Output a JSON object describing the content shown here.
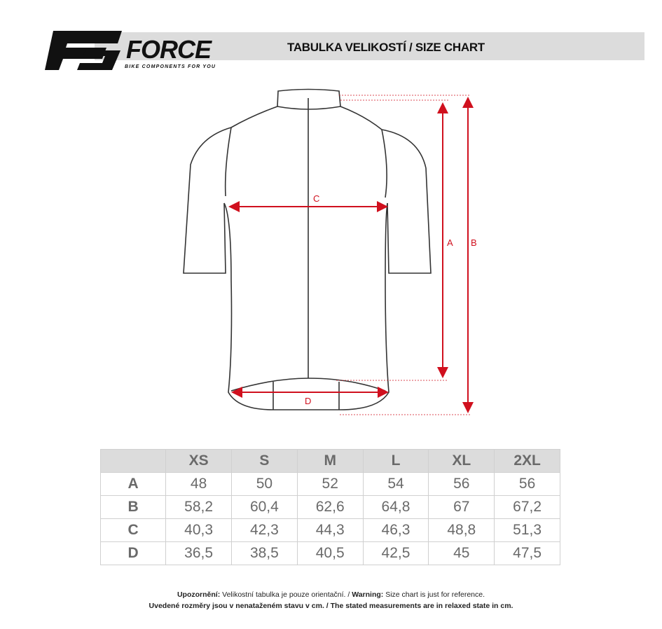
{
  "brand": {
    "name": "FORCE",
    "tagline": "BIKE COMPONENTS FOR YOU"
  },
  "header": {
    "title": "TABULKA VELIKOSTÍ / SIZE CHART"
  },
  "diagram": {
    "labels": {
      "a": "A",
      "b": "B",
      "c": "C",
      "d": "D"
    },
    "accent": "#d0101e"
  },
  "table": {
    "columns": [
      "XS",
      "S",
      "M",
      "L",
      "XL",
      "2XL"
    ],
    "rows": [
      {
        "label": "A",
        "values": [
          "48",
          "50",
          "52",
          "54",
          "56",
          "56"
        ]
      },
      {
        "label": "B",
        "values": [
          "58,2",
          "60,4",
          "62,6",
          "64,8",
          "67",
          "67,2"
        ]
      },
      {
        "label": "C",
        "values": [
          "40,3",
          "42,3",
          "44,3",
          "46,3",
          "48,8",
          "51,3"
        ]
      },
      {
        "label": "D",
        "values": [
          "36,5",
          "38,5",
          "40,5",
          "42,5",
          "45",
          "47,5"
        ]
      }
    ]
  },
  "footer": {
    "warn_cz_label": "Upozornění:",
    "warn_cz": "Velikostní tabulka je pouze orientační. /",
    "warn_en_label": "Warning:",
    "warn_en": "Size chart is just for reference.",
    "line2": "Uvedené rozměry jsou v nenataženém stavu v cm. / The stated measurements are in relaxed state in cm."
  }
}
